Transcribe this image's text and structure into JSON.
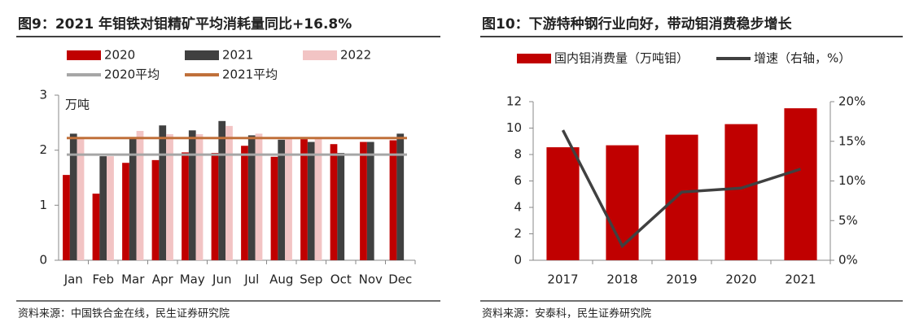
{
  "chart_data": [
    {
      "type": "bar",
      "title": "图9：2021 年钼铁对钼精矿平均消耗量同比+16.8%",
      "y_label": "万吨",
      "source": "资料来源：中国铁合金在线，民生证券研究院",
      "categories": [
        "Jan",
        "Feb",
        "Mar",
        "Apr",
        "May",
        "Jun",
        "Jul",
        "Aug",
        "Sep",
        "Oct",
        "Nov",
        "Dec"
      ],
      "series": [
        {
          "name": "2020",
          "color": "#c00000",
          "values": [
            1.55,
            1.21,
            1.77,
            1.82,
            1.96,
            1.95,
            2.08,
            1.88,
            2.2,
            2.11,
            2.15,
            2.18
          ]
        },
        {
          "name": "2021",
          "color": "#404040",
          "values": [
            2.3,
            1.89,
            2.22,
            2.45,
            2.36,
            2.53,
            2.27,
            2.19,
            2.15,
            1.95,
            2.15,
            2.3
          ]
        },
        {
          "name": "2022",
          "color": "#f2c4c4",
          "values": [
            2.22,
            1.89,
            2.35,
            2.29,
            2.29,
            2.44,
            2.3,
            2.22,
            2.23,
            null,
            null,
            null
          ]
        }
      ],
      "ref_lines": [
        {
          "name": "2020平均",
          "color": "#a6a6a6",
          "value": 1.92
        },
        {
          "name": "2021平均",
          "color": "#c0703a",
          "value": 2.22
        }
      ],
      "ylim": [
        0,
        3
      ],
      "yticks": [
        0,
        1,
        2,
        3
      ],
      "grid": false
    },
    {
      "type": "bar",
      "title": "图10：下游特种钢行业向好，带动钼消费稳步增长",
      "source": "资料来源：安泰科，民生证券研究院",
      "categories": [
        "2017",
        "2018",
        "2019",
        "2020",
        "2021"
      ],
      "series": [
        {
          "name": "国内钼消费量（万吨钼）",
          "color": "#c00000",
          "values": [
            8.55,
            8.7,
            9.5,
            10.3,
            11.5
          ]
        },
        {
          "name": "增速（右轴，%）",
          "color": "#404040",
          "type": "line",
          "axis": "y2",
          "values": [
            16.4,
            1.8,
            8.6,
            9.1,
            11.5
          ]
        }
      ],
      "ylim": [
        0,
        12
      ],
      "yticks": [
        0,
        2,
        4,
        6,
        8,
        10,
        12
      ],
      "y2lim": [
        0,
        20
      ],
      "y2ticks": [
        {
          "value": 0,
          "label": "0%"
        },
        {
          "value": 5,
          "label": "5%"
        },
        {
          "value": 10,
          "label": "10%"
        },
        {
          "value": 15,
          "label": "15%"
        },
        {
          "value": 20,
          "label": "20%"
        }
      ],
      "grid": false
    }
  ]
}
